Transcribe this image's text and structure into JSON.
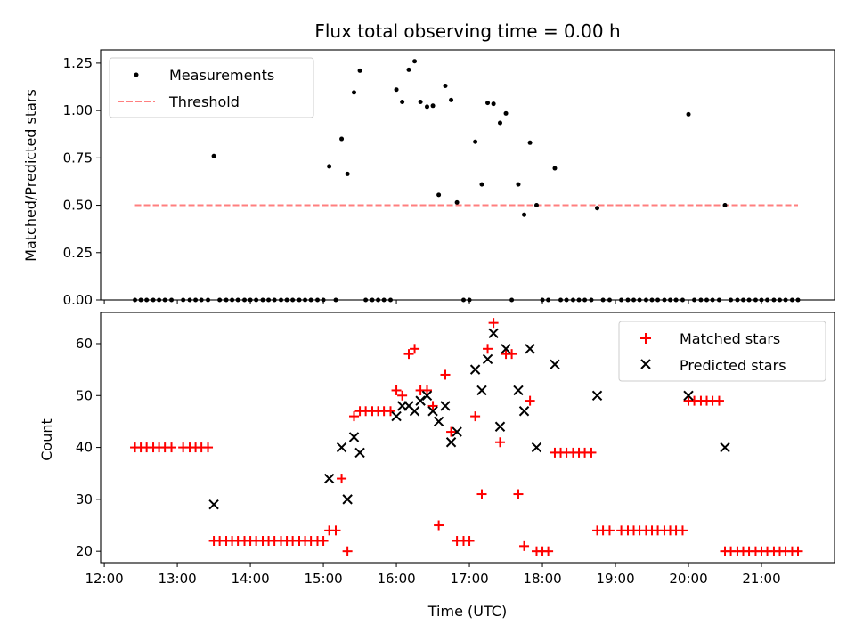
{
  "chart_data": [
    {
      "type": "scatter",
      "title": "Flux total observing time = 0.00 h",
      "xlabel": "",
      "ylabel": "Matched/Predicted stars",
      "ylim": [
        0,
        1.32
      ],
      "xlim_hours": [
        11.95,
        22.0
      ],
      "yticks": [
        0.0,
        0.25,
        0.5,
        0.75,
        1.0,
        1.25
      ],
      "ytick_labels": [
        "0.00",
        "0.25",
        "0.50",
        "0.75",
        "1.00",
        "1.25"
      ],
      "legend_position": "top-left",
      "series": [
        {
          "name": "Measurements",
          "color": "#000000",
          "marker": "dot",
          "points": [
            [
              12.42,
              0
            ],
            [
              12.5,
              0
            ],
            [
              12.58,
              0
            ],
            [
              12.67,
              0
            ],
            [
              12.75,
              0
            ],
            [
              12.83,
              0
            ],
            [
              12.92,
              0
            ],
            [
              13.08,
              0
            ],
            [
              13.17,
              0
            ],
            [
              13.25,
              0
            ],
            [
              13.33,
              0
            ],
            [
              13.42,
              0
            ],
            [
              13.5,
              0.76
            ],
            [
              13.58,
              0
            ],
            [
              13.67,
              0
            ],
            [
              13.75,
              0
            ],
            [
              13.83,
              0
            ],
            [
              13.92,
              0
            ],
            [
              14.0,
              0
            ],
            [
              14.08,
              0
            ],
            [
              14.17,
              0
            ],
            [
              14.25,
              0
            ],
            [
              14.33,
              0
            ],
            [
              14.42,
              0
            ],
            [
              14.5,
              0
            ],
            [
              14.58,
              0
            ],
            [
              14.67,
              0
            ],
            [
              14.75,
              0
            ],
            [
              14.83,
              0
            ],
            [
              14.92,
              0
            ],
            [
              15.0,
              0
            ],
            [
              15.08,
              0.705
            ],
            [
              15.17,
              0
            ],
            [
              15.25,
              0.85
            ],
            [
              15.33,
              0.665
            ],
            [
              15.42,
              1.095
            ],
            [
              15.5,
              1.21
            ],
            [
              15.58,
              0
            ],
            [
              15.67,
              0
            ],
            [
              15.75,
              0
            ],
            [
              15.83,
              0
            ],
            [
              15.92,
              0
            ],
            [
              16.0,
              1.11
            ],
            [
              16.08,
              1.045
            ],
            [
              16.17,
              1.215
            ],
            [
              16.25,
              1.26
            ],
            [
              16.33,
              1.045
            ],
            [
              16.42,
              1.02
            ],
            [
              16.5,
              1.025
            ],
            [
              16.58,
              0.555
            ],
            [
              16.67,
              1.13
            ],
            [
              16.75,
              1.055
            ],
            [
              16.83,
              0.515
            ],
            [
              16.92,
              0
            ],
            [
              17.0,
              0
            ],
            [
              17.08,
              0.835
            ],
            [
              17.17,
              0.61
            ],
            [
              17.25,
              1.04
            ],
            [
              17.33,
              1.035
            ],
            [
              17.42,
              0.935
            ],
            [
              17.5,
              0.985
            ],
            [
              17.58,
              0
            ],
            [
              17.67,
              0.61
            ],
            [
              17.75,
              0.45
            ],
            [
              17.83,
              0.83
            ],
            [
              17.92,
              0.5
            ],
            [
              18.0,
              0
            ],
            [
              18.08,
              0
            ],
            [
              18.17,
              0.695
            ],
            [
              18.25,
              0
            ],
            [
              18.33,
              0
            ],
            [
              18.42,
              0
            ],
            [
              18.5,
              0
            ],
            [
              18.58,
              0
            ],
            [
              18.67,
              0
            ],
            [
              18.75,
              0.485
            ],
            [
              18.83,
              0
            ],
            [
              18.92,
              0
            ],
            [
              19.08,
              0
            ],
            [
              19.17,
              0
            ],
            [
              19.25,
              0
            ],
            [
              19.33,
              0
            ],
            [
              19.42,
              0
            ],
            [
              19.5,
              0
            ],
            [
              19.58,
              0
            ],
            [
              19.67,
              0
            ],
            [
              19.75,
              0
            ],
            [
              19.83,
              0
            ],
            [
              19.92,
              0
            ],
            [
              20.0,
              0.98
            ],
            [
              20.08,
              0
            ],
            [
              20.17,
              0
            ],
            [
              20.25,
              0
            ],
            [
              20.33,
              0
            ],
            [
              20.42,
              0
            ],
            [
              20.5,
              0.5
            ],
            [
              20.58,
              0
            ],
            [
              20.67,
              0
            ],
            [
              20.75,
              0
            ],
            [
              20.83,
              0
            ],
            [
              20.92,
              0
            ],
            [
              21.0,
              0
            ],
            [
              21.08,
              0
            ],
            [
              21.17,
              0
            ],
            [
              21.25,
              0
            ],
            [
              21.33,
              0
            ],
            [
              21.42,
              0
            ],
            [
              21.5,
              0
            ]
          ]
        },
        {
          "name": "Threshold",
          "color": "#ff7f7f",
          "marker": "dashed-line",
          "points": [
            [
              12.42,
              0.5
            ],
            [
              21.5,
              0.5
            ]
          ]
        }
      ]
    },
    {
      "type": "scatter",
      "title": "",
      "xlabel": "Time (UTC)",
      "ylabel": "Count",
      "ylim": [
        17.8,
        66
      ],
      "xlim_hours": [
        11.95,
        22.0
      ],
      "yticks": [
        20,
        30,
        40,
        50,
        60
      ],
      "ytick_labels": [
        "20",
        "30",
        "40",
        "50",
        "60"
      ],
      "xticks": [
        12,
        13,
        14,
        15,
        16,
        17,
        18,
        19,
        20,
        21
      ],
      "xtick_labels": [
        "12:00",
        "13:00",
        "14:00",
        "15:00",
        "16:00",
        "17:00",
        "18:00",
        "19:00",
        "20:00",
        "21:00"
      ],
      "legend_position": "top-right",
      "series": [
        {
          "name": "Matched stars",
          "color": "#ff0000",
          "marker": "plus",
          "points": [
            [
              12.42,
              40
            ],
            [
              12.5,
              40
            ],
            [
              12.58,
              40
            ],
            [
              12.67,
              40
            ],
            [
              12.75,
              40
            ],
            [
              12.83,
              40
            ],
            [
              12.92,
              40
            ],
            [
              13.08,
              40
            ],
            [
              13.17,
              40
            ],
            [
              13.25,
              40
            ],
            [
              13.33,
              40
            ],
            [
              13.42,
              40
            ],
            [
              13.5,
              22
            ],
            [
              13.58,
              22
            ],
            [
              13.67,
              22
            ],
            [
              13.75,
              22
            ],
            [
              13.83,
              22
            ],
            [
              13.92,
              22
            ],
            [
              14.0,
              22
            ],
            [
              14.08,
              22
            ],
            [
              14.17,
              22
            ],
            [
              14.25,
              22
            ],
            [
              14.33,
              22
            ],
            [
              14.42,
              22
            ],
            [
              14.5,
              22
            ],
            [
              14.58,
              22
            ],
            [
              14.67,
              22
            ],
            [
              14.75,
              22
            ],
            [
              14.83,
              22
            ],
            [
              14.92,
              22
            ],
            [
              15.0,
              22
            ],
            [
              15.08,
              24
            ],
            [
              15.17,
              24
            ],
            [
              15.25,
              34
            ],
            [
              15.33,
              20
            ],
            [
              15.42,
              46
            ],
            [
              15.5,
              47
            ],
            [
              15.58,
              47
            ],
            [
              15.67,
              47
            ],
            [
              15.75,
              47
            ],
            [
              15.83,
              47
            ],
            [
              15.92,
              47
            ],
            [
              16.0,
              51
            ],
            [
              16.08,
              50
            ],
            [
              16.17,
              58
            ],
            [
              16.25,
              59
            ],
            [
              16.33,
              51
            ],
            [
              16.42,
              51
            ],
            [
              16.5,
              48
            ],
            [
              16.58,
              25
            ],
            [
              16.67,
              54
            ],
            [
              16.75,
              43
            ],
            [
              16.83,
              22
            ],
            [
              16.92,
              22
            ],
            [
              17.0,
              22
            ],
            [
              17.08,
              46
            ],
            [
              17.17,
              31
            ],
            [
              17.25,
              59
            ],
            [
              17.33,
              64
            ],
            [
              17.42,
              41
            ],
            [
              17.5,
              58
            ],
            [
              17.58,
              58
            ],
            [
              17.67,
              31
            ],
            [
              17.75,
              21
            ],
            [
              17.83,
              49
            ],
            [
              17.92,
              20
            ],
            [
              18.0,
              20
            ],
            [
              18.08,
              20
            ],
            [
              18.17,
              39
            ],
            [
              18.25,
              39
            ],
            [
              18.33,
              39
            ],
            [
              18.42,
              39
            ],
            [
              18.5,
              39
            ],
            [
              18.58,
              39
            ],
            [
              18.67,
              39
            ],
            [
              18.75,
              24
            ],
            [
              18.83,
              24
            ],
            [
              18.92,
              24
            ],
            [
              19.08,
              24
            ],
            [
              19.17,
              24
            ],
            [
              19.25,
              24
            ],
            [
              19.33,
              24
            ],
            [
              19.42,
              24
            ],
            [
              19.5,
              24
            ],
            [
              19.58,
              24
            ],
            [
              19.67,
              24
            ],
            [
              19.75,
              24
            ],
            [
              19.83,
              24
            ],
            [
              19.92,
              24
            ],
            [
              20.0,
              49
            ],
            [
              20.08,
              49
            ],
            [
              20.17,
              49
            ],
            [
              20.25,
              49
            ],
            [
              20.33,
              49
            ],
            [
              20.42,
              49
            ],
            [
              20.5,
              20
            ],
            [
              20.58,
              20
            ],
            [
              20.67,
              20
            ],
            [
              20.75,
              20
            ],
            [
              20.83,
              20
            ],
            [
              20.92,
              20
            ],
            [
              21.0,
              20
            ],
            [
              21.08,
              20
            ],
            [
              21.17,
              20
            ],
            [
              21.25,
              20
            ],
            [
              21.33,
              20
            ],
            [
              21.42,
              20
            ],
            [
              21.5,
              20
            ]
          ]
        },
        {
          "name": "Predicted stars",
          "color": "#000000",
          "marker": "x",
          "points": [
            [
              13.5,
              29
            ],
            [
              15.08,
              34
            ],
            [
              15.25,
              40
            ],
            [
              15.33,
              30
            ],
            [
              15.42,
              42
            ],
            [
              15.5,
              39
            ],
            [
              16.0,
              46
            ],
            [
              16.08,
              48
            ],
            [
              16.17,
              48
            ],
            [
              16.25,
              47
            ],
            [
              16.33,
              49
            ],
            [
              16.42,
              50
            ],
            [
              16.5,
              47
            ],
            [
              16.58,
              45
            ],
            [
              16.67,
              48
            ],
            [
              16.75,
              41
            ],
            [
              16.83,
              43
            ],
            [
              17.08,
              55
            ],
            [
              17.17,
              51
            ],
            [
              17.25,
              57
            ],
            [
              17.33,
              62
            ],
            [
              17.42,
              44
            ],
            [
              17.5,
              59
            ],
            [
              17.67,
              51
            ],
            [
              17.75,
              47
            ],
            [
              17.83,
              59
            ],
            [
              17.92,
              40
            ],
            [
              18.17,
              56
            ],
            [
              18.75,
              50
            ],
            [
              20.0,
              50
            ],
            [
              20.5,
              40
            ]
          ]
        }
      ]
    }
  ]
}
